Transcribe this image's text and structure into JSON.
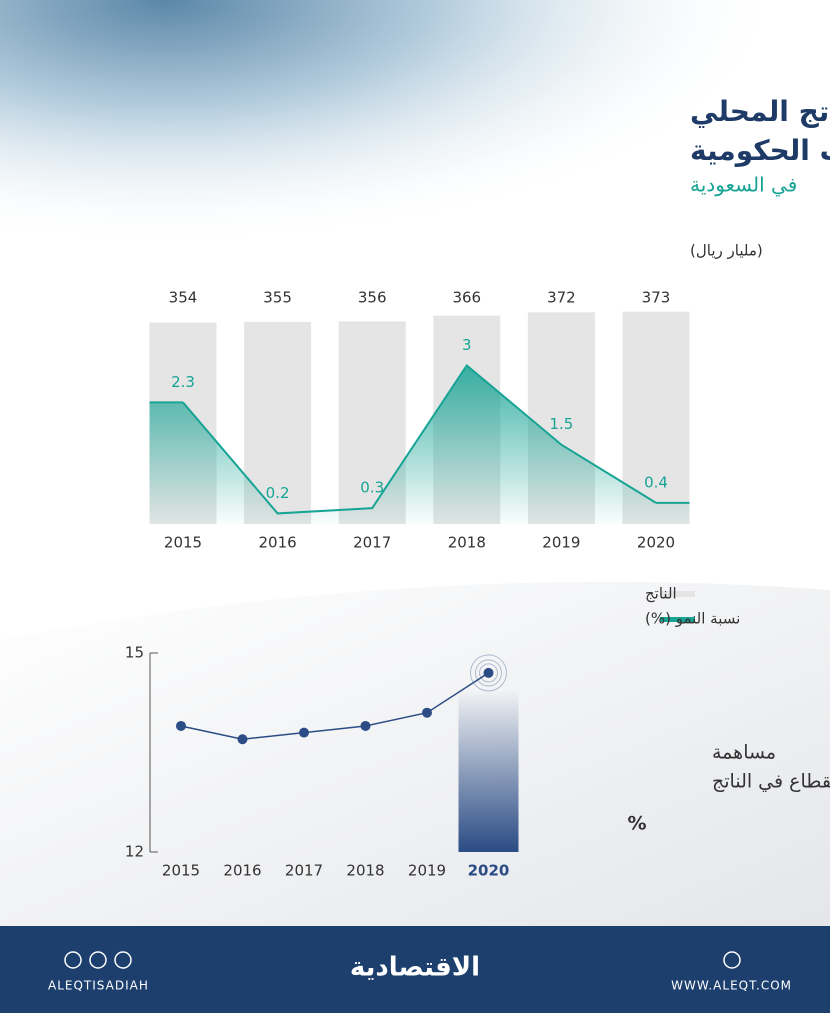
{
  "header": {
    "title": [
      "الناتج المحلي",
      "لقطاع الخدمات الحكومية"
    ],
    "subtitle": "في السعودية"
  },
  "chart_data": [
    {
      "type": "combo",
      "unit_label": "(مليار ريال)",
      "categories": [
        "2015",
        "2016",
        "2017",
        "2018",
        "2019",
        "2020"
      ],
      "series": [
        {
          "name": "الناتج",
          "color": "#e5e5e5",
          "values": [
            354,
            355,
            356,
            366,
            372,
            373
          ]
        },
        {
          "name": "نسبة النمو (%)",
          "color": "#17a495",
          "axis": "y2",
          "values": [
            2.3,
            0.2,
            0.3,
            3.0,
            1.5,
            0.4
          ]
        }
      ],
      "ylim": [
        0,
        390
      ],
      "y2lim": [
        0,
        4.2
      ]
    },
    {
      "type": "line",
      "title": [
        "مساهمة",
        "القطاع في الناتج"
      ],
      "unit": "%",
      "categories": [
        "2015",
        "2016",
        "2017",
        "2018",
        "2019",
        "2020"
      ],
      "values": [
        13.9,
        13.7,
        13.8,
        13.9,
        14.1,
        14.7
      ],
      "color": "#2b4c85",
      "ylim": [
        12,
        15
      ],
      "yticks": [
        12,
        15
      ]
    }
  ],
  "footer": {
    "handle": "ALEQTISADIAH",
    "brand": "الاقتصادية",
    "website": "WWW.ALEQT.COM"
  }
}
